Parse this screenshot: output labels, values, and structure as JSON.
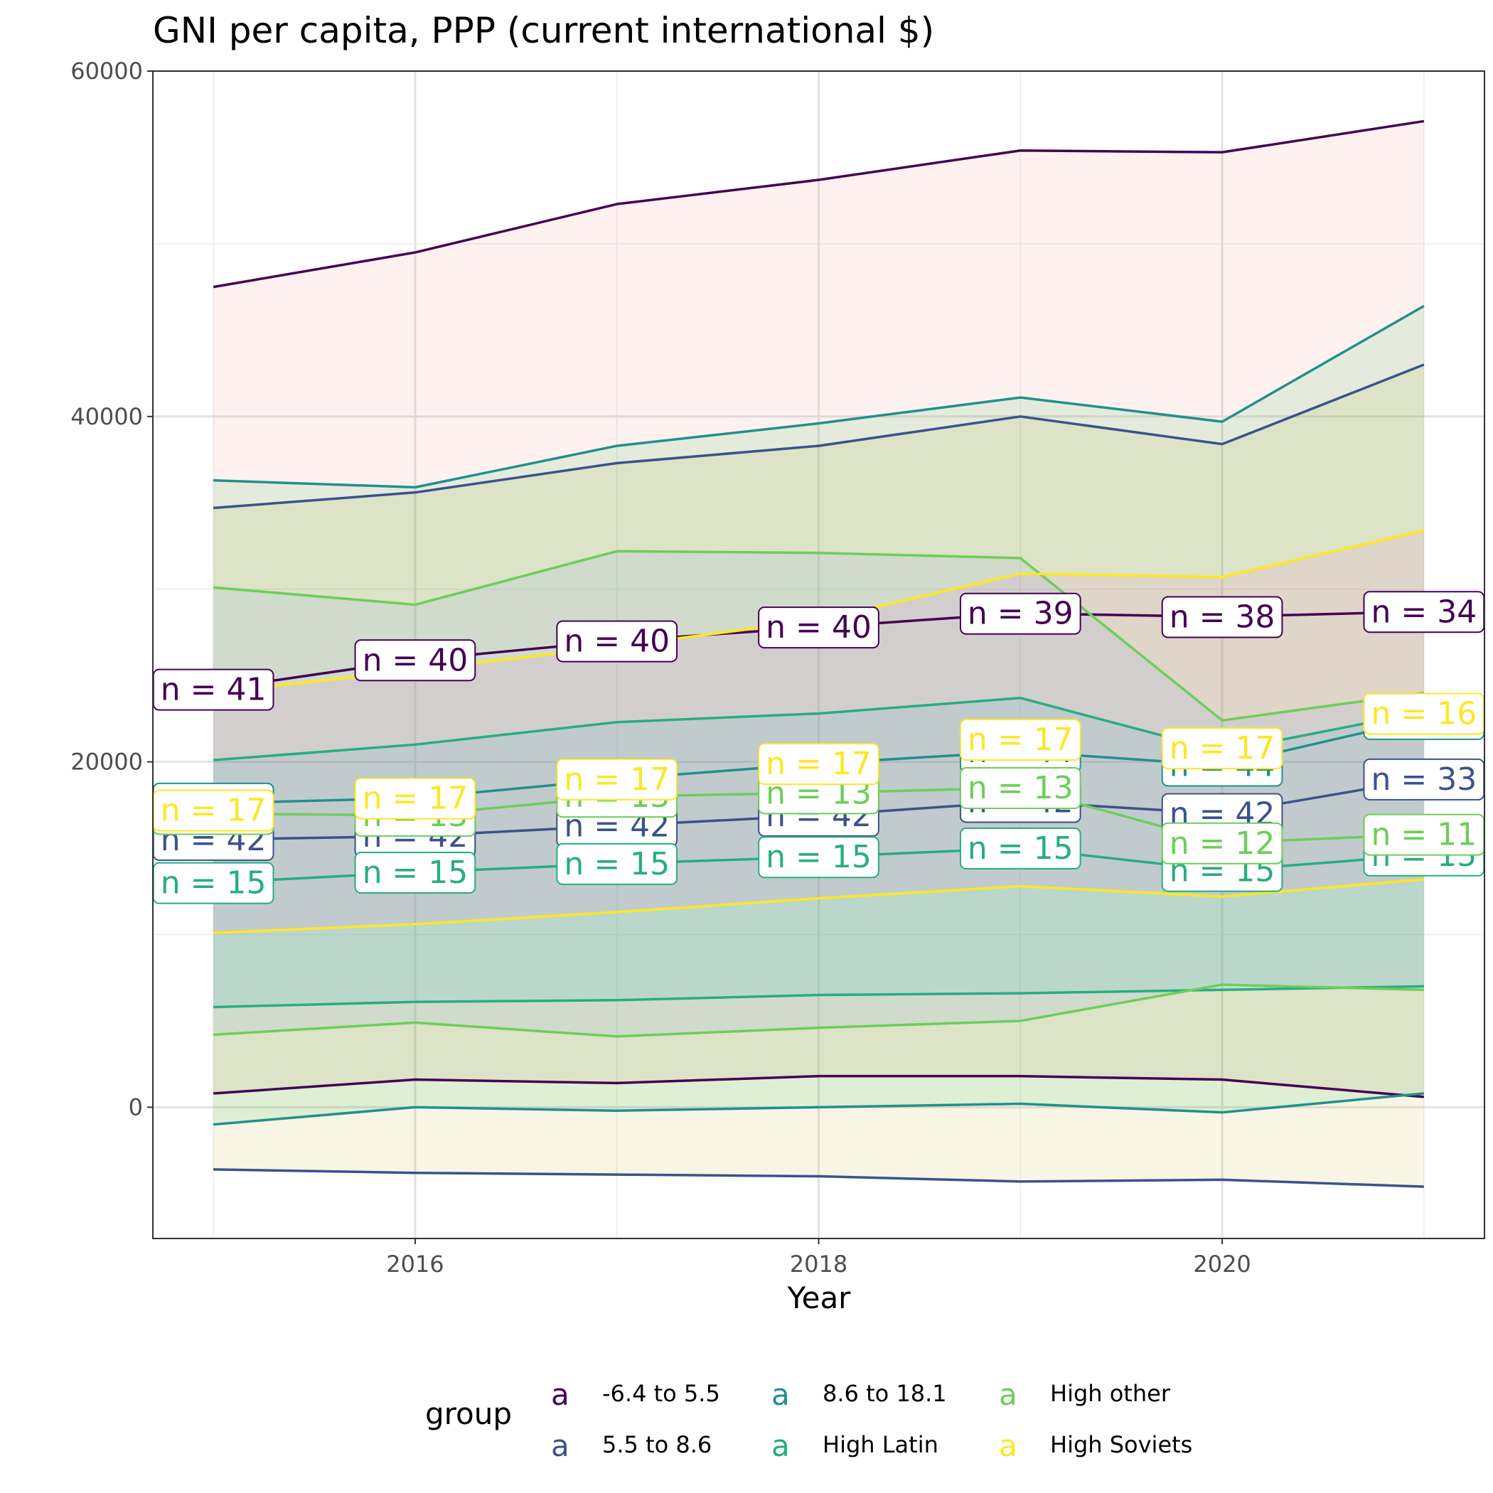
{
  "chart_data": {
    "type": "line",
    "title": "GNI per capita, PPP (current international $)",
    "xlabel": "Year",
    "ylabel": "",
    "x": [
      2015,
      2016,
      2017,
      2018,
      2019,
      2020,
      2021
    ],
    "xlim": [
      2014.7,
      2021.3
    ],
    "ylim": [
      -7600,
      60000
    ],
    "x_ticks": [
      2016,
      2018,
      2020
    ],
    "x_tick_labels": [
      "2016",
      "2018",
      "2020"
    ],
    "y_ticks": [
      0,
      20000,
      40000,
      60000
    ],
    "y_tick_labels": [
      "0",
      "20000",
      "40000",
      "60000"
    ],
    "y_minor_ticks": [
      10000,
      30000,
      50000
    ],
    "x_minor_ticks": [
      2015,
      2017,
      2019,
      2021
    ],
    "grid": true,
    "legend": {
      "title": "group",
      "position": "bottom",
      "key_glyph": "a",
      "entries": [
        "-6.4 to 5.5",
        "5.5 to 8.6",
        "8.6 to 18.1",
        "High Latin",
        "High other",
        "High Soviets"
      ]
    },
    "series": [
      {
        "name": "-6.4 to 5.5",
        "color": "#440154",
        "ribbon_fill": "#F8766D",
        "mean": [
          24200,
          25900,
          27000,
          27800,
          28600,
          28400,
          28700
        ],
        "upper": [
          47500,
          49500,
          52300,
          53700,
          55400,
          55300,
          57100
        ],
        "lower": [
          800,
          1600,
          1400,
          1800,
          1800,
          1600,
          600
        ],
        "labels": [
          "n = 41",
          "n = 40",
          "n = 40",
          "n = 40",
          "n = 39",
          "n = 38",
          "n = 34"
        ]
      },
      {
        "name": "5.5 to 8.6",
        "color": "#3B528B",
        "ribbon_fill": "#B79F00",
        "mean": [
          15500,
          15700,
          16300,
          16900,
          17700,
          17000,
          19000
        ],
        "upper": [
          34700,
          35600,
          37300,
          38300,
          40000,
          38400,
          43000
        ],
        "lower": [
          -3600,
          -3800,
          -3900,
          -4000,
          -4300,
          -4200,
          -4600
        ],
        "labels": [
          "n = 42",
          "n = 42",
          "n = 42",
          "n = 42",
          "n = 42",
          "n = 42",
          "n = 33"
        ]
      },
      {
        "name": "8.6 to 18.1",
        "color": "#21908C",
        "ribbon_fill": "#00BA38",
        "mean": [
          17600,
          17900,
          19000,
          19900,
          20600,
          19800,
          22500
        ],
        "upper": [
          36300,
          35900,
          38300,
          39600,
          41100,
          39700,
          46400
        ],
        "lower": [
          -1000,
          0,
          -200,
          0,
          200,
          -300,
          800
        ],
        "labels": [
          "n = 44",
          "n = 44",
          "n = 44",
          "n = 44",
          "n = 44",
          "n = 44",
          "n = 44"
        ]
      },
      {
        "name": "High Latin",
        "color": "#27AD81",
        "ribbon_fill": "#00BFC4",
        "mean": [
          13000,
          13600,
          14100,
          14500,
          15000,
          13700,
          14600
        ],
        "upper": [
          20100,
          21000,
          22300,
          22800,
          23700,
          20600,
          22900
        ],
        "lower": [
          5800,
          6100,
          6200,
          6500,
          6600,
          6800,
          7000
        ],
        "labels": [
          "n = 15",
          "n = 15",
          "n = 15",
          "n = 15",
          "n = 15",
          "n = 15",
          "n = 15"
        ]
      },
      {
        "name": "High other",
        "color": "#6CCE59",
        "ribbon_fill": "#619CFF",
        "mean": [
          17000,
          16900,
          18000,
          18200,
          18500,
          15300,
          15800
        ],
        "upper": [
          30100,
          29100,
          32200,
          32100,
          31800,
          22400,
          24000
        ],
        "lower": [
          4200,
          4900,
          4100,
          4600,
          5000,
          7100,
          6800
        ],
        "labels": [
          "n = 13",
          "n = 13",
          "n = 13",
          "n = 13",
          "n = 13",
          "n = 12",
          "n = 11"
        ]
      },
      {
        "name": "High Soviets",
        "color": "#FDE725",
        "ribbon_fill": "#F564E3",
        "mean": [
          24000,
          25300,
          26700,
          28200,
          30900,
          30700,
          33400
        ],
        "upper": [
          24000,
          25300,
          26700,
          28200,
          30900,
          30700,
          33400
        ],
        "lower": [
          10100,
          10600,
          11300,
          12100,
          12800,
          12200,
          13200
        ],
        "labels": [
          "n = 17",
          "n = 17",
          "n = 17",
          "n = 17",
          "n = 17",
          "n = 17",
          "n = 16"
        ],
        "label_values": [
          17200,
          17900,
          19000,
          19900,
          21300,
          20800,
          22800
        ]
      }
    ]
  }
}
